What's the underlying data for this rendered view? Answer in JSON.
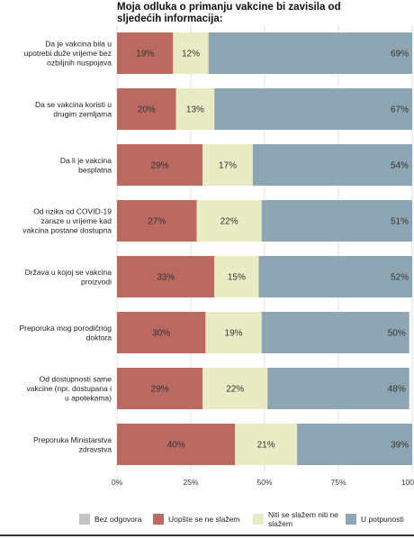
{
  "title": "Moja odluka o primanju vakcine bi zavisila od sljedećih informacija:",
  "colors": {
    "no_answer": "#c4c4c4",
    "disagree": "#bb6a62",
    "neutral": "#e9ebc4",
    "agree": "#8ea6b4",
    "grid": "#e3e3e3"
  },
  "chart_data": {
    "type": "bar",
    "orientation": "horizontal",
    "stacked": true,
    "title": "Moja odluka o primanju vakcine bi zavisila od sljedećih informacija:",
    "categories": [
      "Da je vakcina bila u upotrebi duže vrijeme bez ozbiljnih nuspojava",
      "Da se vakcina koristi u drugim zemljama",
      "Da li je vakcina besplatna",
      "Od rizika od COVID-19 zaraze u vrijeme kad vakcina postane dostupna",
      "Država u kojoj se vakcina proizvodi",
      "Preporuka mog porodičnog doktora",
      "Od dostupnosti same vakcine (npr. dostupana i u apotekama)",
      "Preporuka Ministarstva zdravstva"
    ],
    "category_lines": [
      [
        "Da je vakcina  bila u",
        "upotrebi duže vrijeme bez",
        "ozbiljnih nuspojava"
      ],
      [
        "Da se vakcina koristi u",
        "drugim zemljama"
      ],
      [
        "Da li je vakcina",
        "besplatna"
      ],
      [
        "Od rizika od COVID-19",
        "zaraze u vrijeme kad",
        "vakcina postane dostupna"
      ],
      [
        "Država u kojoj se vakcina",
        "proizvodi"
      ],
      [
        "Preporuka mog porodičnog",
        "doktora"
      ],
      [
        "Od dostupnosti same",
        "vakcine (npr. dostupana i",
        "u apotekama)"
      ],
      [
        "Preporuka Ministarstva",
        "zdravstva"
      ]
    ],
    "series": [
      {
        "name": "Bez odgovora",
        "values": [
          0,
          0,
          0,
          0,
          0,
          0,
          0,
          0
        ],
        "labels": [
          "",
          "",
          "",
          "",
          "",
          "",
          "",
          ""
        ]
      },
      {
        "name": "Uopšte se ne slažem",
        "values": [
          19,
          20,
          29,
          27,
          33,
          30,
          29,
          40
        ],
        "labels": [
          "19%",
          "20%",
          "29%",
          "27%",
          "33%",
          "30%",
          "29%",
          "40%"
        ]
      },
      {
        "name": "Niti se slažem niti ne slažem",
        "values": [
          12,
          13,
          17,
          22,
          15,
          19,
          22,
          21
        ],
        "labels": [
          "12%",
          "13%",
          "17%",
          "22%",
          "15%",
          "19%",
          "22%",
          "21%"
        ]
      },
      {
        "name": "U potpunosti",
        "values": [
          69,
          67,
          54,
          51,
          52,
          50,
          48,
          39
        ],
        "labels": [
          "69%",
          "67%",
          "54%",
          "51%",
          "52%",
          "50%",
          "48%",
          "39%"
        ]
      }
    ],
    "x_ticks": [
      0,
      25,
      50,
      75,
      100
    ],
    "x_tick_labels": [
      "0%",
      "25%",
      "50%",
      "75%",
      "100"
    ],
    "xlim": [
      0,
      100
    ],
    "legend_position": "bottom",
    "grid": true
  },
  "legend": [
    {
      "label": "Bez odgovora",
      "color": "#c4c4c4"
    },
    {
      "label": "Uopšte se ne slažem",
      "color": "#bb6a62"
    },
    {
      "label": "Niti se slažem niti ne slažem",
      "color": "#e9ebc4"
    },
    {
      "label": "U potpunosti",
      "color": "#8ea6b4"
    }
  ]
}
